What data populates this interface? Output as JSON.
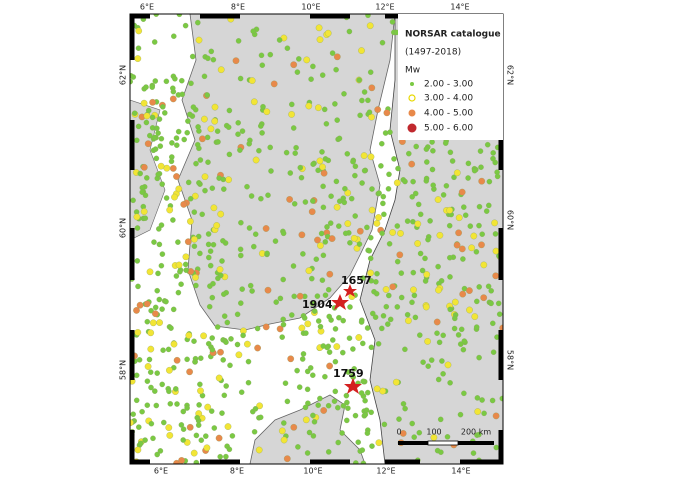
{
  "graticule": {
    "top": [
      "6°E",
      "8°E",
      "10°E",
      "12°E",
      "14°E"
    ],
    "bottom": [
      "6°E",
      "8°E",
      "10°E",
      "12°E",
      "14°E"
    ],
    "left": [
      "62°N",
      "60°N",
      "58°N"
    ],
    "right": [
      "62°N",
      "60°N",
      "58°N"
    ]
  },
  "legend": {
    "title": "NORSAR catalogue",
    "period": "(1497-2018)",
    "heading": "Mw",
    "entries": [
      "2.00 - 3.00",
      "3.00 - 4.00",
      "4.00 - 5.00",
      "5.00 - 6.00"
    ]
  },
  "events": [
    "1657",
    "1904",
    "1759"
  ],
  "scale_bar": [
    "0",
    "100",
    "200 km"
  ]
}
